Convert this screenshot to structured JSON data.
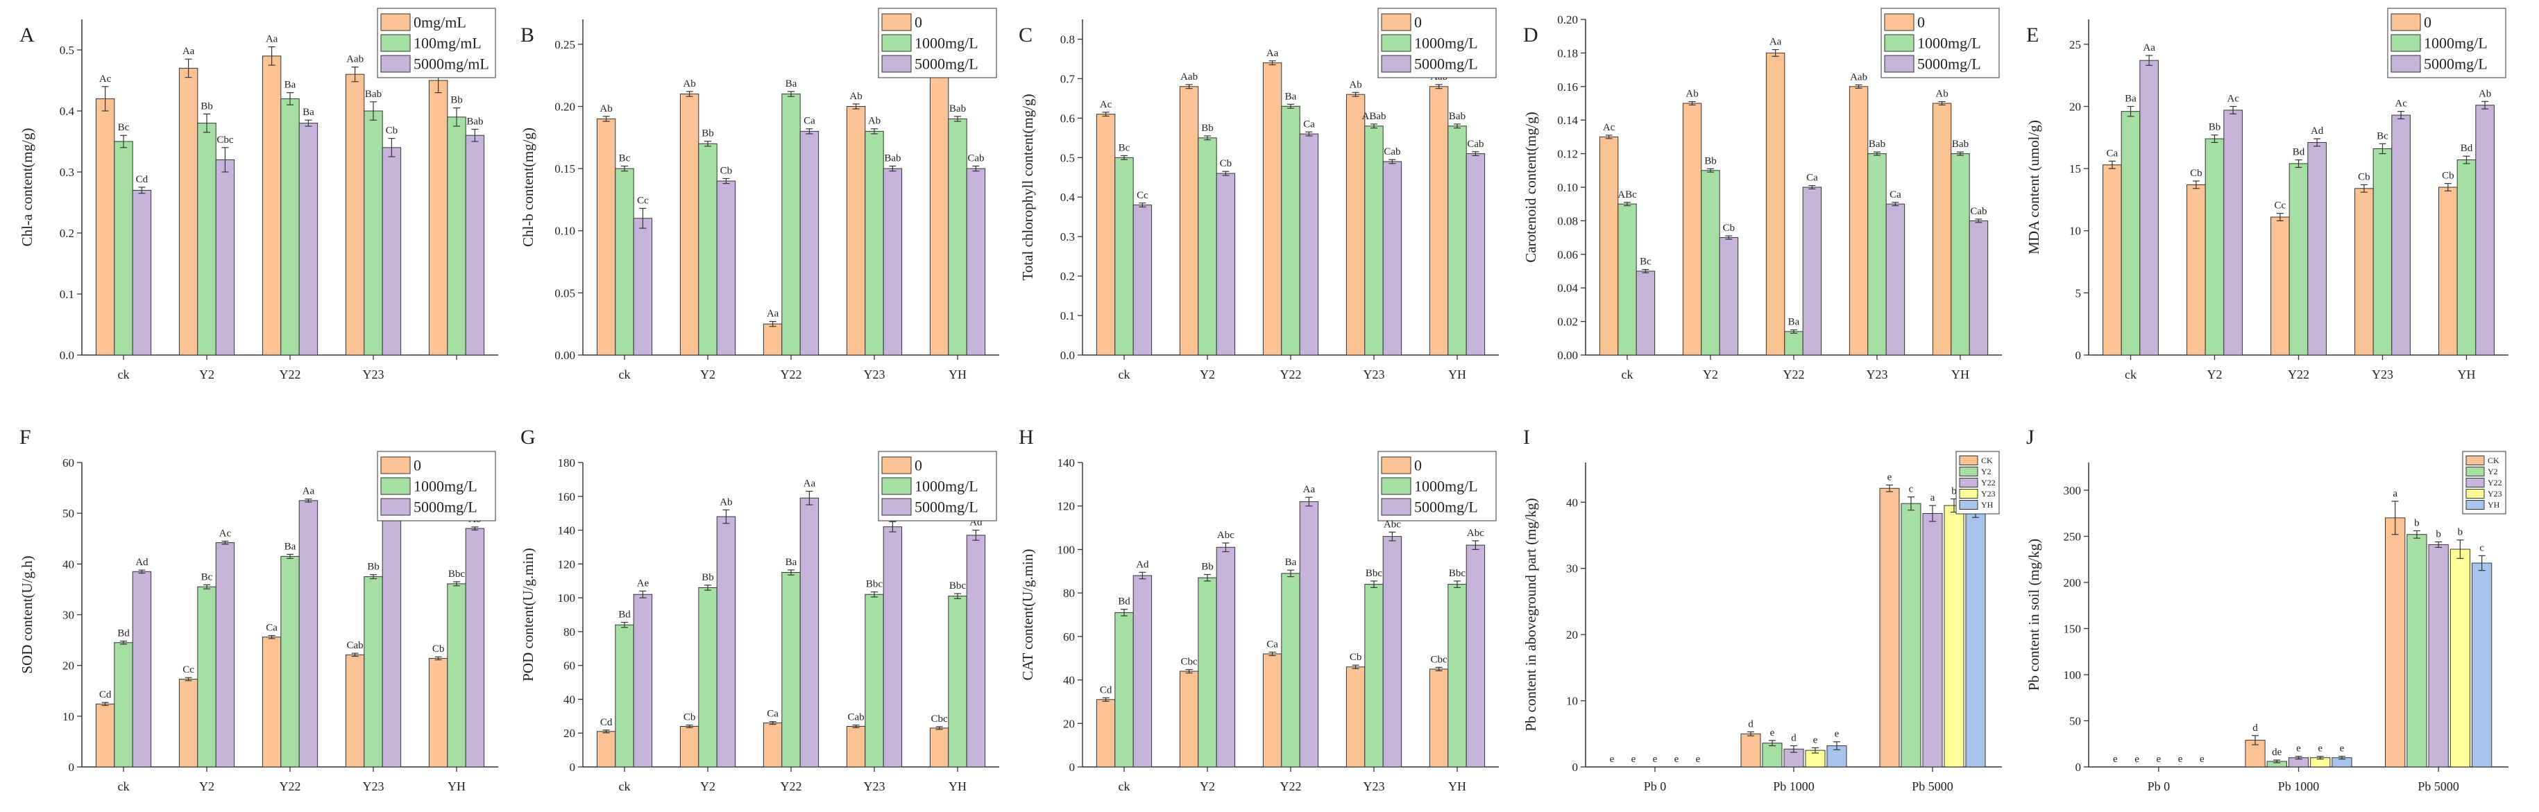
{
  "colors": {
    "series3": [
      "#fbc293",
      "#a6dfa4",
      "#c6b4da"
    ],
    "series5": [
      "#fbc293",
      "#a6dfa4",
      "#c6b4da",
      "#ffff99",
      "#a9c4ec"
    ],
    "stroke": "#333333"
  },
  "chart_data": [
    {
      "letter": "A",
      "type": "bar",
      "ylabel": "Chl-a content(mg/g)",
      "categories": [
        "ck",
        "Y2",
        "Y22",
        "Y23",
        ""
      ],
      "ylim": [
        0,
        0.55
      ],
      "ystep": 0.1,
      "decimals": 1,
      "series": [
        {
          "name": "0mg/mL",
          "values": [
            0.42,
            0.47,
            0.49,
            0.46,
            0.45
          ],
          "errors": [
            0.02,
            0.015,
            0.015,
            0.012,
            0.02
          ],
          "labels": [
            "Ac",
            "Aa",
            "Aa",
            "Aab",
            "Ab"
          ]
        },
        {
          "name": "100mg/mL",
          "values": [
            0.35,
            0.38,
            0.42,
            0.4,
            0.39
          ],
          "errors": [
            0.01,
            0.015,
            0.01,
            0.015,
            0.015
          ],
          "labels": [
            "Bc",
            "Bb",
            "Ba",
            "Bab",
            "Bb"
          ]
        },
        {
          "name": "5000mg/mL",
          "values": [
            0.27,
            0.32,
            0.38,
            0.34,
            0.36
          ],
          "errors": [
            0.005,
            0.02,
            0.005,
            0.015,
            0.01
          ],
          "labels": [
            "Cd",
            "Cbc",
            "Ba",
            "Cb",
            "Bab"
          ]
        }
      ]
    },
    {
      "letter": "B",
      "type": "bar",
      "ylabel": "Chl-b content(mg/g)",
      "categories": [
        "ck",
        "Y2",
        "Y22",
        "Y23",
        "YH"
      ],
      "ylim": [
        0,
        0.27
      ],
      "ystep": 0.05,
      "decimals": 2,
      "series": [
        {
          "name": "0",
          "values": [
            0.19,
            0.21,
            0.025,
            0.2,
            0.23
          ],
          "errors": [
            0.002,
            0.002,
            0.002,
            0.002,
            0.002
          ],
          "labels": [
            "Ab",
            "Ab",
            "Aa",
            "Ab",
            "Aa"
          ]
        },
        {
          "name": "1000mg/L",
          "values": [
            0.15,
            0.17,
            0.21,
            0.18,
            0.19
          ],
          "errors": [
            0.002,
            0.002,
            0.002,
            0.002,
            0.002
          ],
          "labels": [
            "Bc",
            "Bb",
            "Ba",
            "Ab",
            "Bab"
          ]
        },
        {
          "name": "5000mg/L",
          "values": [
            0.11,
            0.14,
            0.18,
            0.15,
            0.15
          ],
          "errors": [
            0.008,
            0.002,
            0.002,
            0.002,
            0.002
          ],
          "labels": [
            "Cc",
            "Cb",
            "Ca",
            "Bab",
            "Cab"
          ]
        }
      ]
    },
    {
      "letter": "C",
      "type": "bar",
      "ylabel": "Total chlorophyll content(mg/g)",
      "categories": [
        "ck",
        "Y2",
        "Y22",
        "Y23",
        "YH"
      ],
      "ylim": [
        0,
        0.85
      ],
      "ystep": 0.1,
      "decimals": 1,
      "series": [
        {
          "name": "0",
          "values": [
            0.61,
            0.68,
            0.74,
            0.66,
            0.68
          ],
          "errors": [
            0.005,
            0.005,
            0.005,
            0.005,
            0.005
          ],
          "labels": [
            "Ac",
            "Aab",
            "Aa",
            "Ab",
            "Aab"
          ]
        },
        {
          "name": "1000mg/L",
          "values": [
            0.5,
            0.55,
            0.63,
            0.58,
            0.58
          ],
          "errors": [
            0.005,
            0.005,
            0.005,
            0.005,
            0.005
          ],
          "labels": [
            "Bc",
            "Bb",
            "Ba",
            "ABab",
            "Bab"
          ]
        },
        {
          "name": "5000mg/L",
          "values": [
            0.38,
            0.46,
            0.56,
            0.49,
            0.51
          ],
          "errors": [
            0.005,
            0.005,
            0.005,
            0.005,
            0.005
          ],
          "labels": [
            "Cc",
            "Cb",
            "Ca",
            "Cab",
            "Cab"
          ]
        }
      ]
    },
    {
      "letter": "D",
      "type": "bar",
      "ylabel": "Carotenoid content(mg/g)",
      "categories": [
        "ck",
        "Y2",
        "Y22",
        "Y23",
        "YH"
      ],
      "ylim": [
        0,
        0.2
      ],
      "ystep": 0.02,
      "decimals": 2,
      "series": [
        {
          "name": "0",
          "values": [
            0.13,
            0.15,
            0.18,
            0.16,
            0.15
          ],
          "errors": [
            0.001,
            0.001,
            0.002,
            0.001,
            0.001
          ],
          "labels": [
            "Ac",
            "Ab",
            "Aa",
            "Aab",
            "Ab"
          ]
        },
        {
          "name": "1000mg/L",
          "values": [
            0.09,
            0.11,
            0.014,
            0.12,
            0.12
          ],
          "errors": [
            0.001,
            0.001,
            0.001,
            0.001,
            0.001
          ],
          "labels": [
            "ABc",
            "Bb",
            "Ba",
            "Bab",
            "Bab"
          ]
        },
        {
          "name": "5000mg/L",
          "values": [
            0.05,
            0.07,
            0.1,
            0.09,
            0.08
          ],
          "errors": [
            0.001,
            0.001,
            0.001,
            0.001,
            0.001
          ],
          "labels": [
            "Bc",
            "Cb",
            "Ca",
            "Ca",
            "Cab"
          ]
        }
      ]
    },
    {
      "letter": "E",
      "type": "bar",
      "ylabel": "MDA content (umol/g)",
      "categories": [
        "ck",
        "Y2",
        "Y22",
        "Y23",
        "YH"
      ],
      "ylim": [
        0,
        27
      ],
      "ystep": 5,
      "decimals": 0,
      "series": [
        {
          "name": "0",
          "values": [
            15.3,
            13.7,
            11.1,
            13.4,
            13.5
          ],
          "errors": [
            0.3,
            0.3,
            0.3,
            0.3,
            0.3
          ],
          "labels": [
            "Ca",
            "Cb",
            "Cc",
            "Cb",
            "Cb"
          ]
        },
        {
          "name": "1000mg/L",
          "values": [
            19.6,
            17.4,
            15.4,
            16.6,
            15.7
          ],
          "errors": [
            0.4,
            0.3,
            0.3,
            0.4,
            0.3
          ],
          "labels": [
            "Ba",
            "Bb",
            "Bd",
            "Bc",
            "Bd"
          ]
        },
        {
          "name": "5000mg/L",
          "values": [
            23.7,
            19.7,
            17.1,
            19.3,
            20.1
          ],
          "errors": [
            0.4,
            0.3,
            0.3,
            0.3,
            0.3
          ],
          "labels": [
            "Aa",
            "Ac",
            "Ad",
            "Ac",
            "Ab"
          ]
        }
      ]
    },
    {
      "letter": "F",
      "type": "bar",
      "ylabel": "SOD content(U/g.h)",
      "categories": [
        "ck",
        "Y2",
        "Y22",
        "Y23",
        "YH"
      ],
      "ylim": [
        0,
        60
      ],
      "ystep": 10,
      "decimals": 0,
      "series": [
        {
          "name": "0",
          "values": [
            12.4,
            17.3,
            25.6,
            22.1,
            21.4
          ],
          "errors": [
            0.3,
            0.3,
            0.3,
            0.3,
            0.3
          ],
          "labels": [
            "Cd",
            "Cc",
            "Ca",
            "Cab",
            "Cb"
          ]
        },
        {
          "name": "1000mg/L",
          "values": [
            24.5,
            35.5,
            41.5,
            37.5,
            36.1
          ],
          "errors": [
            0.3,
            0.4,
            0.4,
            0.4,
            0.4
          ],
          "labels": [
            "Bd",
            "Bc",
            "Ba",
            "Bb",
            "Bbc"
          ]
        },
        {
          "name": "5000mg/L",
          "values": [
            38.5,
            44.2,
            52.5,
            48.9,
            47.0
          ],
          "errors": [
            0.3,
            0.3,
            0.3,
            0.3,
            0.3
          ],
          "labels": [
            "Ad",
            "Ac",
            "Aa",
            "Aab",
            "Ab"
          ]
        }
      ]
    },
    {
      "letter": "G",
      "type": "bar",
      "ylabel": "POD content(U/g.min)",
      "categories": [
        "ck",
        "Y2",
        "Y22",
        "Y23",
        "YH"
      ],
      "ylim": [
        0,
        180
      ],
      "ystep": 20,
      "decimals": 0,
      "series": [
        {
          "name": "0",
          "values": [
            21,
            24,
            26,
            24,
            23
          ],
          "errors": [
            0.8,
            0.8,
            0.8,
            0.8,
            0.8
          ],
          "labels": [
            "Cd",
            "Cb",
            "Ca",
            "Cab",
            "Cbc"
          ]
        },
        {
          "name": "1000mg/L",
          "values": [
            84,
            106,
            115,
            102,
            101
          ],
          "errors": [
            1.5,
            1.5,
            1.5,
            1.5,
            1.5
          ],
          "labels": [
            "Bd",
            "Bb",
            "Ba",
            "Bbc",
            "Bbc"
          ]
        },
        {
          "name": "5000mg/L",
          "values": [
            102,
            148,
            159,
            142,
            137
          ],
          "errors": [
            2,
            4,
            4,
            3,
            3
          ],
          "labels": [
            "Ae",
            "Ab",
            "Aa",
            "Abc",
            "Ad"
          ]
        }
      ]
    },
    {
      "letter": "H",
      "type": "bar",
      "ylabel": "CAT content(U/g.min)",
      "categories": [
        "ck",
        "Y2",
        "Y22",
        "Y23",
        "YH"
      ],
      "ylim": [
        0,
        140
      ],
      "ystep": 20,
      "decimals": 0,
      "series": [
        {
          "name": "0",
          "values": [
            31,
            44,
            52,
            46,
            45
          ],
          "errors": [
            0.8,
            0.8,
            0.8,
            0.8,
            0.8
          ],
          "labels": [
            "Cd",
            "Cbc",
            "Ca",
            "Cb",
            "Cbc"
          ]
        },
        {
          "name": "1000mg/L",
          "values": [
            71,
            87,
            89,
            84,
            84
          ],
          "errors": [
            1.5,
            1.5,
            1.5,
            1.5,
            1.5
          ],
          "labels": [
            "Bd",
            "Bb",
            "Ba",
            "Bbc",
            "Bbc"
          ]
        },
        {
          "name": "5000mg/L",
          "values": [
            88,
            101,
            122,
            106,
            102
          ],
          "errors": [
            1.5,
            2,
            2,
            2,
            2
          ],
          "labels": [
            "Ad",
            "Abc",
            "Aa",
            "Abc",
            "Abc"
          ]
        }
      ]
    },
    {
      "letter": "I",
      "type": "bar",
      "ylabel": "Pb content in aboveground part (mg/kg)",
      "categories": [
        "Pb 0",
        "Pb 1000",
        "Pb 5000"
      ],
      "ylim": [
        0,
        46
      ],
      "ystep": 10,
      "decimals": 0,
      "series": [
        {
          "name": "CK",
          "values": [
            0,
            5.0,
            42.1
          ],
          "errors": [
            0,
            0.3,
            0.5
          ],
          "labels": [
            "e",
            "d",
            "e"
          ]
        },
        {
          "name": "Y2",
          "values": [
            0,
            3.6,
            39.8
          ],
          "errors": [
            0,
            0.4,
            1.0
          ],
          "labels": [
            "e",
            "e",
            "c"
          ]
        },
        {
          "name": "Y22",
          "values": [
            0,
            2.7,
            38.3
          ],
          "errors": [
            0,
            0.5,
            1.2
          ],
          "labels": [
            "e",
            "d",
            "a"
          ]
        },
        {
          "name": "Y23",
          "values": [
            0,
            2.5,
            39.5
          ],
          "errors": [
            0,
            0.4,
            1.0
          ],
          "labels": [
            "e",
            "e",
            "b"
          ]
        },
        {
          "name": "YH",
          "values": [
            0,
            3.2,
            38.7
          ],
          "errors": [
            0,
            0.6,
            1.0
          ],
          "labels": [
            "e",
            "e",
            "c"
          ]
        }
      ]
    },
    {
      "letter": "J",
      "type": "bar",
      "ylabel": "Pb content in soil (mg/kg)",
      "categories": [
        "Pb 0",
        "Pb 1000",
        "Pb 5000"
      ],
      "ylim": [
        0,
        330
      ],
      "ystep": 50,
      "decimals": 0,
      "series": [
        {
          "name": "CK",
          "values": [
            0,
            29,
            270
          ],
          "errors": [
            0,
            5,
            18
          ],
          "labels": [
            "e",
            "d",
            "a"
          ]
        },
        {
          "name": "Y2",
          "values": [
            0,
            6,
            252
          ],
          "errors": [
            0,
            1.5,
            4
          ],
          "labels": [
            "e",
            "de",
            "b"
          ]
        },
        {
          "name": "Y22",
          "values": [
            0,
            10,
            241
          ],
          "errors": [
            0,
            1.5,
            3
          ],
          "labels": [
            "e",
            "e",
            "b"
          ]
        },
        {
          "name": "Y23",
          "values": [
            0,
            10,
            236
          ],
          "errors": [
            0,
            1.5,
            10
          ],
          "labels": [
            "e",
            "e",
            "b"
          ]
        },
        {
          "name": "YH",
          "values": [
            0,
            10,
            221
          ],
          "errors": [
            0,
            1.5,
            8
          ],
          "labels": [
            "e",
            "e",
            "c"
          ]
        }
      ]
    }
  ]
}
